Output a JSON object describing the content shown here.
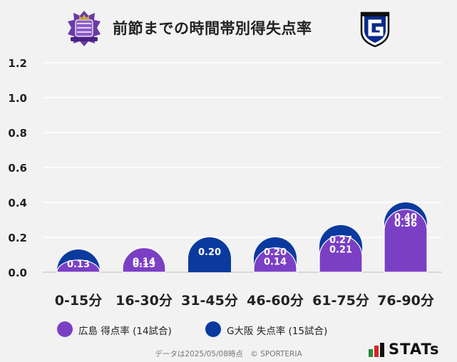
{
  "header": {
    "title": "前節までの時間帯別得失点率",
    "home_crest_icon": "sanfrecce-hiroshima-crest-icon",
    "away_crest_icon": "gamba-osaka-crest-icon"
  },
  "colors": {
    "background": "#f2f2f2",
    "home_series": "#7b3fc4",
    "away_series": "#0a3a9e",
    "grid": "#ffffff"
  },
  "chart_data": {
    "type": "bar",
    "title": "前節までの時間帯別得失点率",
    "categories": [
      "0-15分",
      "16-30分",
      "31-45分",
      "46-60分",
      "61-75分",
      "76-90分"
    ],
    "y_ticks": [
      "0.0",
      "0.2",
      "0.4",
      "0.6",
      "0.8",
      "1.0",
      "1.2"
    ],
    "ylim": [
      0,
      1.2
    ],
    "grid": true,
    "xlabel": "",
    "ylabel": "",
    "series": [
      {
        "name": "G大阪 失点率 (15試合)",
        "color": "#0a3a9e",
        "values": [
          0.13,
          0.13,
          0.2,
          0.2,
          0.27,
          0.4
        ],
        "labels": [
          "0.13",
          "0.13",
          "0.20",
          "0.20",
          "0.27",
          "0.40"
        ]
      },
      {
        "name": "広島 得点率 (14試合)",
        "color": "#7b3fc4",
        "values": [
          0.07,
          0.14,
          0.0,
          0.14,
          0.21,
          0.36
        ],
        "labels": [
          "",
          "0.14",
          "",
          "0.14",
          "0.21",
          "0.36"
        ]
      }
    ],
    "legend_position": "bottom-left"
  },
  "legend": [
    {
      "label": "広島 得点率 (14試合)",
      "color": "#7b3fc4"
    },
    {
      "label": "G大阪 失点率 (15試合)",
      "color": "#0a3a9e"
    }
  ],
  "footer": {
    "note": "データは2025/05/08時点　© SPORTERIA",
    "stats_logo_text": "STATs"
  }
}
